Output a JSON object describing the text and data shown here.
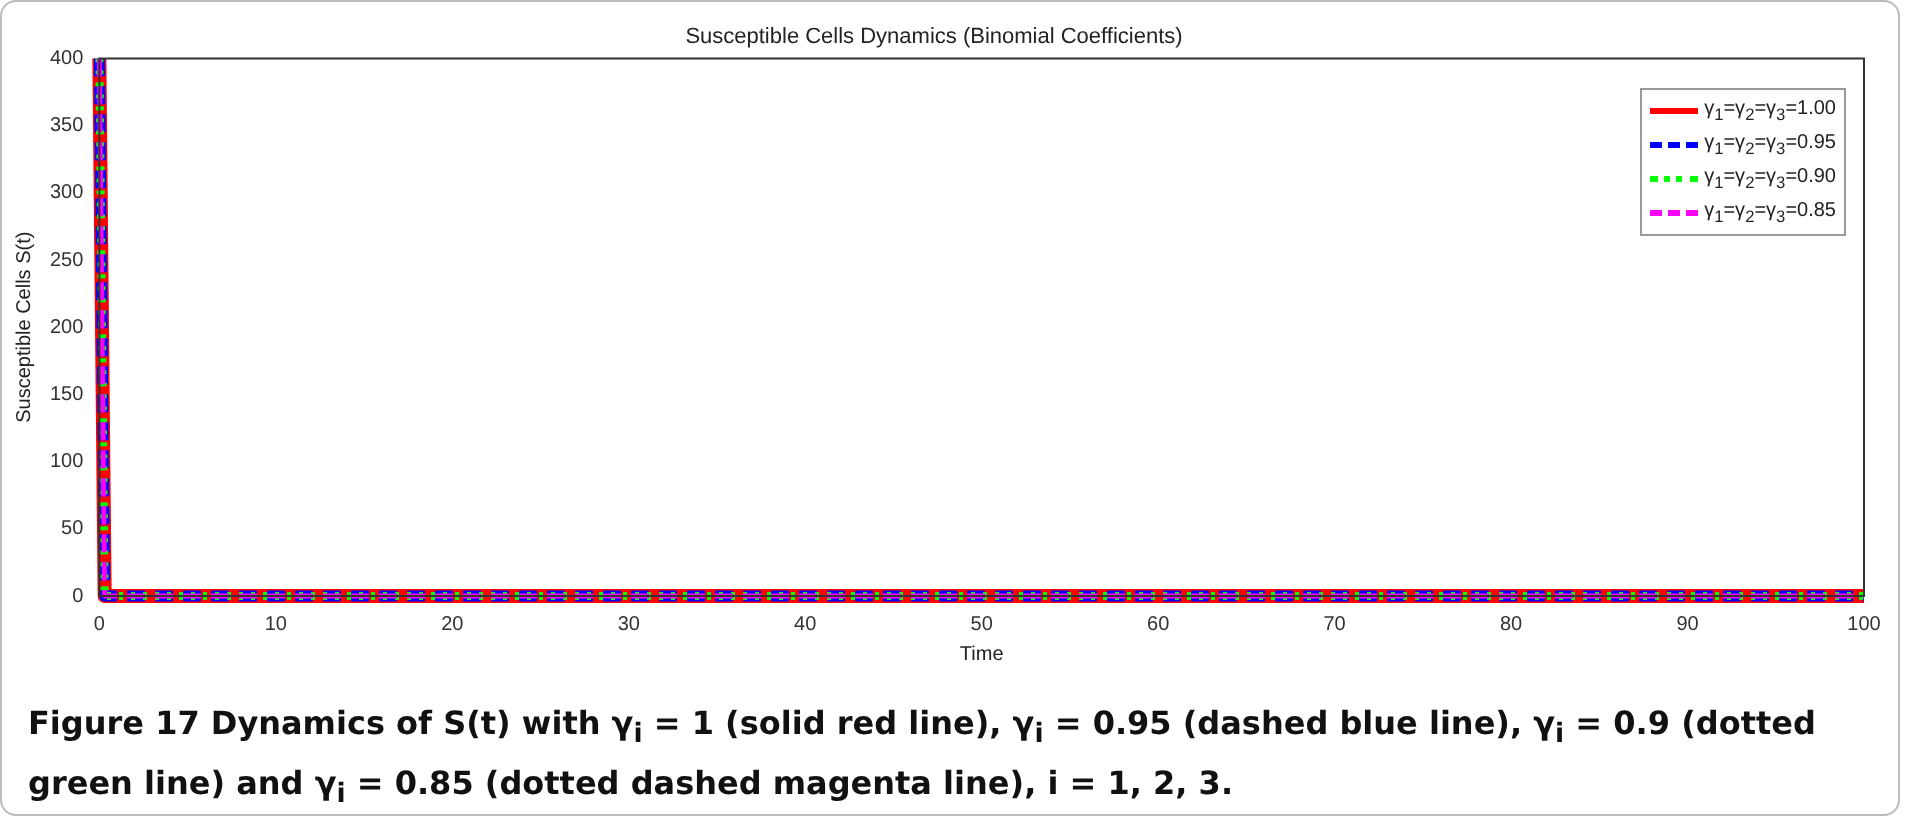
{
  "chart_data": {
    "type": "line",
    "title": "Susceptible Cells Dynamics (Binomial Coefficients)",
    "xlabel": "Time",
    "ylabel": "Susceptible Cells S(t)",
    "xlim": [
      0,
      100
    ],
    "xticks": [
      0,
      10,
      20,
      30,
      40,
      50,
      60,
      70,
      80,
      90,
      100
    ],
    "ylim": [
      0,
      400
    ],
    "yticks": [
      0,
      50,
      100,
      150,
      200,
      250,
      300,
      350,
      400
    ],
    "grid": false,
    "legend": "top right",
    "marker": "none",
    "series": [
      {
        "name": "γ$_{1}$=γ$_{2}$=γ$_{3}$=1.00",
        "color": "#ff0000",
        "line_style": "solid",
        "x": [
          0,
          0.3,
          100
        ],
        "values": [
          400,
          0,
          0
        ]
      },
      {
        "name": "γ$_{1}$=γ$_{2}$=γ$_{3}$=0.95",
        "color": "#0000ff",
        "line_style": "dashed",
        "x": [
          0,
          0.3,
          100
        ],
        "values": [
          400,
          0,
          0
        ]
      },
      {
        "name": "γ$_{1}$=γ$_{2}$=γ$_{3}$=0.90",
        "color": "#00ff00",
        "line_style": "dotted",
        "x": [
          0,
          0.3,
          100
        ],
        "values": [
          400,
          0,
          0
        ]
      },
      {
        "name": "γ$_{1}$=γ$_{2}$=γ$_{3}$=0.85",
        "color": "#ff00ff",
        "line_style": "dashed",
        "x": [
          0,
          0.3,
          100
        ],
        "values": [
          400,
          0,
          0
        ]
      }
    ],
    "annotations": [
      "Figure 17  Dynamics of S(t) with γ$_{i}$ = 1 (solid red line), γ$_{i}$ = 0.95 (dashed blue line), γ$_{i}$ = 0.9 (dotted green line) and γ$_{i}$ = 0.85 (dotted dashed magenta line), i = 1, 2, 3."
    ]
  }
}
